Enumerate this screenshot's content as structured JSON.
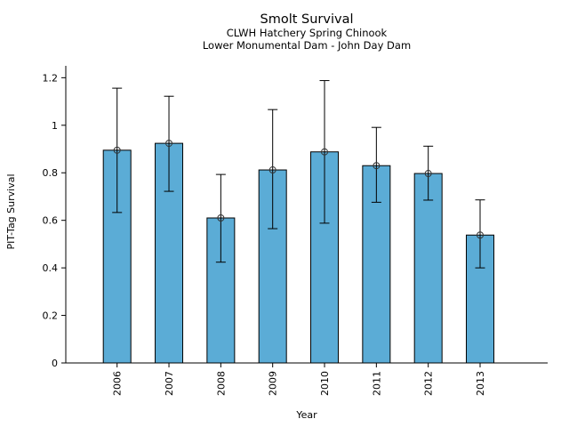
{
  "chart_data": {
    "type": "bar",
    "title": "Smolt Survival",
    "subtitle": [
      "CLWH Hatchery Spring Chinook",
      "Lower Monumental Dam - John Day Dam"
    ],
    "xlabel": "Year",
    "ylabel": "PIT-Tag Survival",
    "categories": [
      "2006",
      "2007",
      "2008",
      "2009",
      "2010",
      "2011",
      "2012",
      "2013"
    ],
    "values": [
      0.895,
      0.924,
      0.61,
      0.812,
      0.888,
      0.83,
      0.797,
      0.538
    ],
    "error_lower": [
      0.633,
      0.722,
      0.424,
      0.565,
      0.588,
      0.676,
      0.685,
      0.4
    ],
    "error_upper": [
      1.156,
      1.122,
      0.793,
      1.066,
      1.188,
      0.991,
      0.912,
      0.686
    ],
    "ylim": [
      0,
      1.25
    ],
    "yticks": [
      0,
      0.2,
      0.4,
      0.6,
      0.8,
      1,
      1.2
    ],
    "ytick_labels": [
      "0",
      "0.2",
      "0.4",
      "0.6",
      "0.8",
      "1",
      "1.2"
    ],
    "bar_color": "#5BACD6",
    "bar_edge_color": "#000000",
    "error_color": "#000000",
    "marker": "open-circle",
    "marker_edge_color": "#333333",
    "grid": false,
    "legend": null,
    "x_tick_rotation_deg": 90
  }
}
